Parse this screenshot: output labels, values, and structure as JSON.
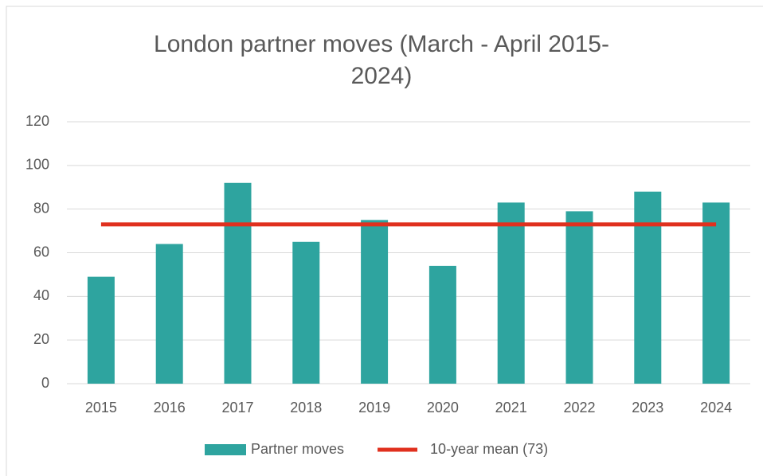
{
  "chart_data": {
    "type": "bar",
    "title": "London partner moves (March - April 2015-2024)",
    "categories": [
      "2015",
      "2016",
      "2017",
      "2018",
      "2019",
      "2020",
      "2021",
      "2022",
      "2023",
      "2024"
    ],
    "series": [
      {
        "name": "Partner moves",
        "type": "bar",
        "color": "#2ea49f",
        "values": [
          49,
          64,
          92,
          65,
          75,
          54,
          83,
          79,
          88,
          83
        ]
      },
      {
        "name": "10-year mean (73)",
        "type": "line",
        "color": "#e0301e",
        "values": [
          73,
          73,
          73,
          73,
          73,
          73,
          73,
          73,
          73,
          73
        ]
      }
    ],
    "ylim": [
      0,
      120
    ],
    "yticks": [
      0,
      20,
      40,
      60,
      80,
      100,
      120
    ],
    "grid": true,
    "legend": "bottom"
  }
}
